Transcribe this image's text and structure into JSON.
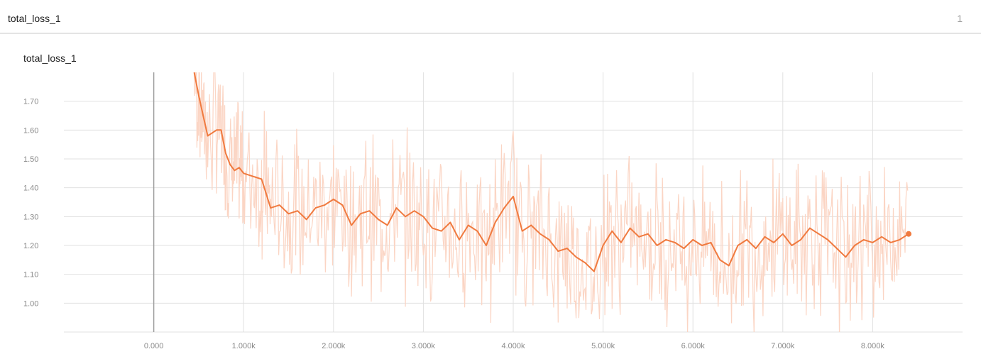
{
  "card": {
    "title": "total_loss_1",
    "count": "1"
  },
  "chart_data": {
    "type": "line",
    "title": "total_loss_1",
    "xlabel": "",
    "ylabel": "",
    "xlim": [
      -1000,
      9000
    ],
    "ylim": [
      0.9,
      1.8
    ],
    "xticks": [
      0,
      1000,
      2000,
      3000,
      4000,
      5000,
      6000,
      7000,
      8000
    ],
    "xtick_labels": [
      "0.000",
      "1.000k",
      "2.000k",
      "3.000k",
      "4.000k",
      "5.000k",
      "6.000k",
      "7.000k",
      "8.000k"
    ],
    "yticks": [
      1.0,
      1.1,
      1.2,
      1.3,
      1.4,
      1.5,
      1.6,
      1.7
    ],
    "ytick_labels": [
      "1.00",
      "1.10",
      "1.20",
      "1.30",
      "1.40",
      "1.50",
      "1.60",
      "1.70"
    ],
    "grid": true,
    "colors": {
      "smoothed": "#f07a3f",
      "raw": "#fbd5c4",
      "grid": "#e0e0e0",
      "zero_axis": "#9e9e9e"
    },
    "series": [
      {
        "x": [
          450,
          500,
          550,
          600,
          700,
          750,
          800,
          850,
          900,
          950,
          1000,
          1100,
          1200,
          1250,
          1300,
          1400,
          1500,
          1600,
          1700,
          1800,
          1900,
          2000,
          2100,
          2200,
          2300,
          2400,
          2500,
          2600,
          2700,
          2800,
          2900,
          3000,
          3100,
          3200,
          3300,
          3400,
          3500,
          3600,
          3700,
          3800,
          3900,
          4000,
          4100,
          4200,
          4300,
          4400,
          4500,
          4600,
          4700,
          4800,
          4900,
          5000,
          5100,
          5200,
          5300,
          5400,
          5500,
          5600,
          5700,
          5800,
          5900,
          6000,
          6100,
          6200,
          6300,
          6400,
          6500,
          6600,
          6700,
          6800,
          6900,
          7000,
          7100,
          7200,
          7300,
          7400,
          7500,
          7600,
          7700,
          7800,
          7900,
          8000,
          8100,
          8200,
          8300,
          8400
        ],
        "values": [
          1.8,
          1.72,
          1.65,
          1.58,
          1.6,
          1.6,
          1.52,
          1.48,
          1.46,
          1.47,
          1.45,
          1.44,
          1.43,
          1.38,
          1.33,
          1.34,
          1.31,
          1.32,
          1.29,
          1.33,
          1.34,
          1.36,
          1.34,
          1.27,
          1.31,
          1.32,
          1.29,
          1.27,
          1.33,
          1.3,
          1.32,
          1.3,
          1.26,
          1.25,
          1.28,
          1.22,
          1.27,
          1.25,
          1.2,
          1.28,
          1.33,
          1.37,
          1.25,
          1.27,
          1.24,
          1.22,
          1.18,
          1.19,
          1.16,
          1.14,
          1.11,
          1.2,
          1.25,
          1.21,
          1.26,
          1.23,
          1.24,
          1.2,
          1.22,
          1.21,
          1.19,
          1.22,
          1.2,
          1.21,
          1.15,
          1.13,
          1.2,
          1.22,
          1.19,
          1.23,
          1.21,
          1.24,
          1.2,
          1.22,
          1.26,
          1.24,
          1.22,
          1.19,
          1.16,
          1.2,
          1.22,
          1.21,
          1.23,
          1.21,
          1.22,
          1.24
        ]
      }
    ]
  }
}
